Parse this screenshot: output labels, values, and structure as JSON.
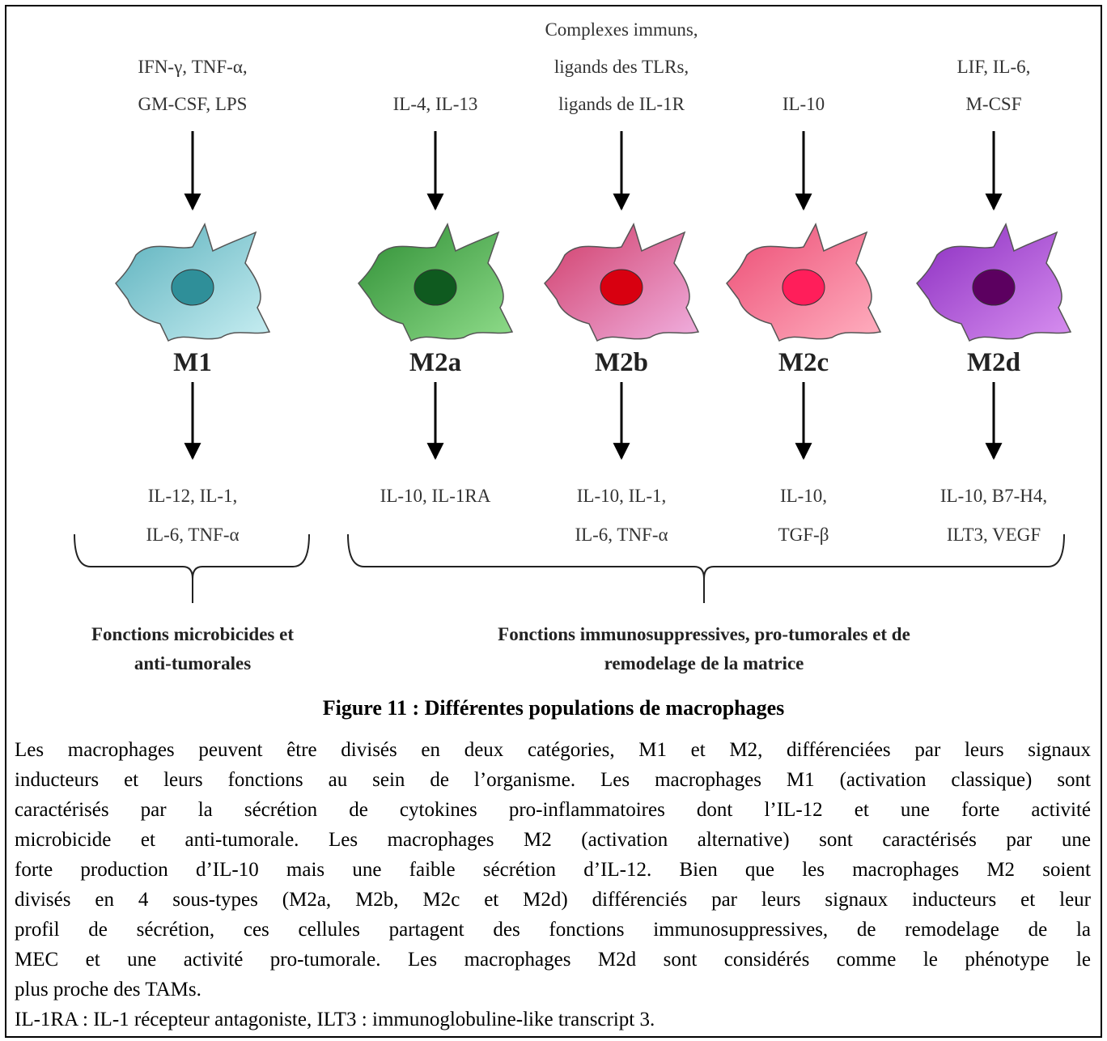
{
  "columns": [
    {
      "inputs": [
        "IFN-γ, TNF-α,",
        "GM-CSF, LPS"
      ],
      "label": "M1",
      "outputs": [
        "IL-12, IL-1,",
        "IL-6, TNF-α"
      ]
    },
    {
      "inputs": [
        "IL-4, IL-13"
      ],
      "label": "M2a",
      "outputs": [
        "IL-10, IL-1RA"
      ]
    },
    {
      "inputs": [
        "Complexes immuns,",
        "ligands des TLRs,",
        "ligands de IL-1R"
      ],
      "label": "M2b",
      "outputs": [
        "IL-10, IL-1,",
        "IL-6, TNF-α"
      ]
    },
    {
      "inputs": [
        "IL-10"
      ],
      "label": "M2c",
      "outputs": [
        "IL-10,",
        "TGF-β"
      ]
    },
    {
      "inputs": [
        "LIF, IL-6,",
        "M-CSF"
      ],
      "label": "M2d",
      "outputs": [
        "IL-10, B7-H4,",
        "ILT3, VEGF"
      ]
    }
  ],
  "groups": [
    {
      "lines": [
        "Fonctions microbicides et",
        "anti-tumorales"
      ]
    },
    {
      "lines": [
        "Fonctions immunosuppressives, pro-tumorales et de",
        "remodelage de la matrice"
      ]
    }
  ],
  "caption": {
    "title": "Figure 11 : Différentes populations de macrophages",
    "paragraph": [
      "Les macrophages peuvent être divisés en deux catégories, M1 et M2, différenciées par leurs signaux",
      "inducteurs et leurs fonctions au sein de l’organisme. Les macrophages M1 (activation classique) sont",
      "caractérisés par la sécrétion de cytokines pro-inflammatoires dont l’IL-12 et une forte activité",
      "microbicide et anti-tumorale. Les macrophages M2 (activation alternative) sont caractérisés par une",
      "forte production d’IL-10 mais une faible sécrétion d’IL-12. Bien que les macrophages M2 soient",
      "divisés en 4 sous-types (M2a, M2b, M2c et M2d) différenciés par leurs signaux inducteurs et leur",
      "profil de sécrétion, ces cellules partagent des fonctions immunosuppressives, de remodelage de la",
      "MEC et une activité pro-tumorale. Les macrophages M2d sont considérés comme le phénotype le",
      "plus proche des TAMs."
    ],
    "note": "IL-1RA : IL-1 récepteur antagoniste, ILT3 : immunoglobuline-like transcript 3."
  }
}
